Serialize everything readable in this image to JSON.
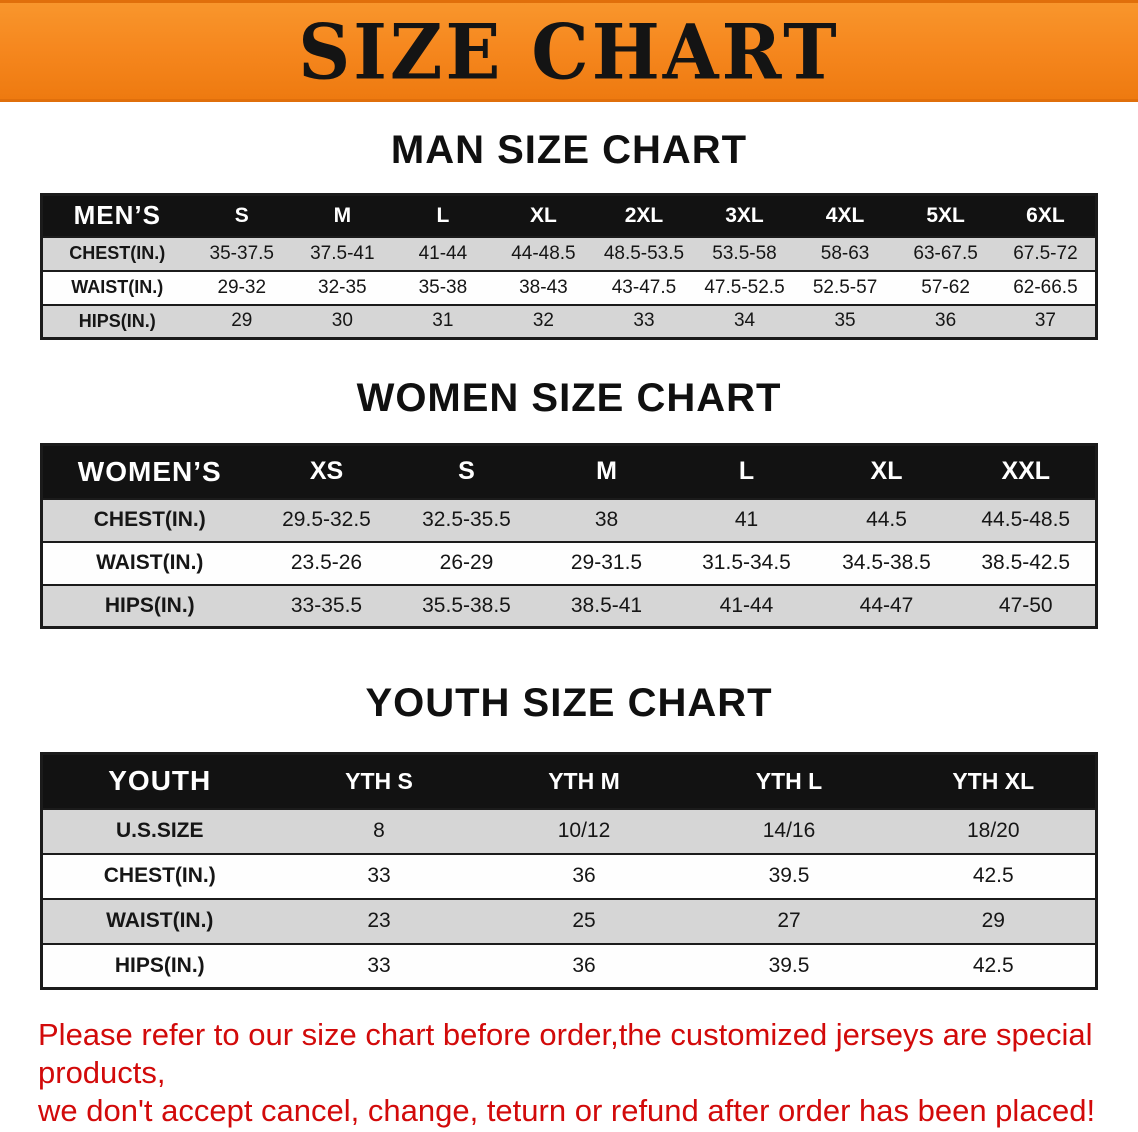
{
  "banner": {
    "title": "SIZE CHART"
  },
  "sections": [
    {
      "heading": "MAN SIZE CHART",
      "table": {
        "header": [
          "MEN’S",
          "S",
          "M",
          "L",
          "XL",
          "2XL",
          "3XL",
          "4XL",
          "5XL",
          "6XL"
        ],
        "rows": [
          [
            "CHEST(IN.)",
            "35-37.5",
            "37.5-41",
            "41-44",
            "44-48.5",
            "48.5-53.5",
            "53.5-58",
            "58-63",
            "63-67.5",
            "67.5-72"
          ],
          [
            "WAIST(IN.)",
            "29-32",
            "32-35",
            "35-38",
            "38-43",
            "43-47.5",
            "47.5-52.5",
            "52.5-57",
            "57-62",
            "62-66.5"
          ],
          [
            "HIPS(IN.)",
            "29",
            "30",
            "31",
            "32",
            "33",
            "34",
            "35",
            "36",
            "37"
          ]
        ]
      }
    },
    {
      "heading": "WOMEN SIZE CHART",
      "table": {
        "header": [
          "WOMEN’S",
          "XS",
          "S",
          "M",
          "L",
          "XL",
          "XXL"
        ],
        "rows": [
          [
            "CHEST(IN.)",
            "29.5-32.5",
            "32.5-35.5",
            "38",
            "41",
            "44.5",
            "44.5-48.5"
          ],
          [
            "WAIST(IN.)",
            "23.5-26",
            "26-29",
            "29-31.5",
            "31.5-34.5",
            "34.5-38.5",
            "38.5-42.5"
          ],
          [
            "HIPS(IN.)",
            "33-35.5",
            "35.5-38.5",
            "38.5-41",
            "41-44",
            "44-47",
            "47-50"
          ]
        ]
      }
    },
    {
      "heading": "YOUTH SIZE CHART",
      "table": {
        "header": [
          "YOUTH",
          "YTH S",
          "YTH M",
          "YTH L",
          "YTH XL"
        ],
        "rows": [
          [
            "U.S.SIZE",
            "8",
            "10/12",
            "14/16",
            "18/20"
          ],
          [
            "CHEST(IN.)",
            "33",
            "36",
            "39.5",
            "42.5"
          ],
          [
            "WAIST(IN.)",
            "23",
            "25",
            "27",
            "29"
          ],
          [
            "HIPS(IN.)",
            "33",
            "36",
            "39.5",
            "42.5"
          ]
        ]
      }
    }
  ],
  "footer": {
    "line1": "Please refer to our size chart before order,the customized jerseys are special products,",
    "line2": "we don't accept cancel, change, teturn or refund after order has been placed!"
  },
  "colors": {
    "banner_bg": "#f6881f",
    "banner_text": "#141414",
    "table_header_bg": "#121212",
    "table_header_text": "#ffffff",
    "row_stripe": "#d6d6d6",
    "footer_text": "#d20a0a"
  }
}
